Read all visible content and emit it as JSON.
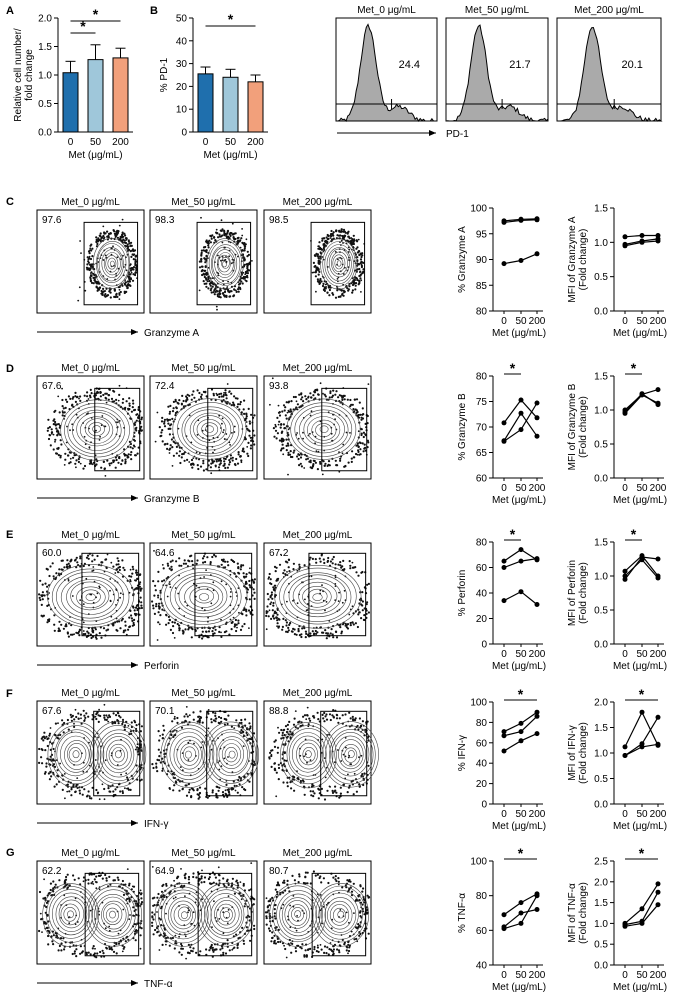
{
  "panels": {
    "A": "A",
    "B": "B",
    "C": "C",
    "D": "D",
    "E": "E",
    "F": "F",
    "G": "G"
  },
  "colors": {
    "bar0": "#1f6fad",
    "bar1": "#9fc7da",
    "bar2": "#f2a07b",
    "hist": "#aaaaaa",
    "dots": "#111111",
    "contour": "#444444"
  },
  "chart_data": [
    {
      "id": "A",
      "type": "bar",
      "title": "",
      "ylabel": "Relative cell number/ fold change",
      "ylabel_lines": [
        "Relative cell number/",
        "fold change"
      ],
      "xlabel": "Met (μg/mL)",
      "categories": [
        "0",
        "50",
        "200"
      ],
      "values": [
        1.04,
        1.27,
        1.3
      ],
      "errors": [
        0.2,
        0.26,
        0.17
      ],
      "ylim": [
        0,
        2.0
      ],
      "yticks": [
        "0.0",
        "0.5",
        "1.0",
        "1.5",
        "2.0"
      ],
      "significance": [
        {
          "from": 0,
          "to": 1,
          "label": "*"
        },
        {
          "from": 0,
          "to": 2,
          "label": "*"
        }
      ]
    },
    {
      "id": "B",
      "type": "bar",
      "title": "",
      "ylabel": "% PD-1",
      "xlabel": "Met (μg/mL)",
      "categories": [
        "0",
        "50",
        "200"
      ],
      "values": [
        25.5,
        24,
        22
      ],
      "errors": [
        3,
        3.5,
        3
      ],
      "ylim": [
        0,
        50
      ],
      "yticks": [
        "0",
        "10",
        "20",
        "30",
        "40",
        "50"
      ],
      "significance": [
        {
          "from": 0,
          "to": 2,
          "label": "*"
        }
      ]
    },
    {
      "id": "B-hist",
      "type": "histogram",
      "xlabel": "PD-1",
      "panels": [
        {
          "title": "Met_0 μg/mL",
          "value": "24.4"
        },
        {
          "title": "Met_50 μg/mL",
          "value": "21.7"
        },
        {
          "title": "Met_200 μg/mL",
          "value": "20.1"
        }
      ]
    },
    {
      "id": "C",
      "type": "line",
      "marker": "Granzyme A",
      "flow": {
        "titles": [
          "Met_0 μg/mL",
          "Met_50 μg/mL",
          "Met_200 μg/mL"
        ],
        "percents": [
          "97.6",
          "98.3",
          "98.5"
        ]
      },
      "pct": {
        "ylabel": "% Granzyme A",
        "xlabel": "Met (μg/mL)",
        "x": [
          "0",
          "50",
          "200"
        ],
        "ylim": [
          80,
          100
        ],
        "yticks": [
          "80",
          "85",
          "90",
          "95",
          "100"
        ],
        "series": [
          [
            97.2,
            97.6,
            97.7
          ],
          [
            97.5,
            97.8,
            97.9
          ],
          [
            89.2,
            89.8,
            91.1
          ]
        ],
        "significance": []
      },
      "mfi": {
        "ylabel": "MFI of Granzyme A (Fold change)",
        "ylabel_lines": [
          "MFI of Granzyme A",
          "(Fold change)"
        ],
        "xlabel": "Met (μg/mL)",
        "x": [
          "0",
          "50",
          "200"
        ],
        "ylim": [
          0.0,
          1.5
        ],
        "yticks": [
          "0.0",
          "0.5",
          "1.0",
          "1.5"
        ],
        "series": [
          [
            1.08,
            1.1,
            1.1
          ],
          [
            0.97,
            1.02,
            1.05
          ],
          [
            0.95,
            1.0,
            1.02
          ]
        ],
        "significance": []
      }
    },
    {
      "id": "D",
      "type": "line",
      "marker": "Granzyme B",
      "flow": {
        "titles": [
          "Met_0 μg/mL",
          "Met_50 μg/mL",
          "Met_200 μg/mL"
        ],
        "percents": [
          "67.6",
          "72.4",
          "93.8"
        ]
      },
      "pct": {
        "ylabel": "% Granzyme B",
        "xlabel": "Met (μg/mL)",
        "x": [
          "0",
          "50",
          "200"
        ],
        "ylim": [
          60,
          80
        ],
        "yticks": [
          "60",
          "65",
          "70",
          "75",
          "80"
        ],
        "series": [
          [
            70.8,
            75.3,
            71.8
          ],
          [
            67.3,
            72.7,
            68.2
          ],
          [
            67.2,
            69.5,
            74.7
          ]
        ],
        "significance": [
          {
            "from": 0,
            "to": 1,
            "label": "*"
          }
        ]
      },
      "mfi": {
        "ylabel": "MFI of Granzyme B (Fold change)",
        "ylabel_lines": [
          "MFI of Granzyme B",
          "(Fold change)"
        ],
        "xlabel": "Met (μg/mL)",
        "x": [
          "0",
          "50",
          "200"
        ],
        "ylim": [
          0.0,
          1.5
        ],
        "yticks": [
          "0.0",
          "0.5",
          "1.0",
          "1.5"
        ],
        "series": [
          [
            1.0,
            1.23,
            1.3
          ],
          [
            0.95,
            1.22,
            1.1
          ],
          [
            0.97,
            1.24,
            1.08
          ]
        ],
        "significance": [
          {
            "from": 0,
            "to": 1,
            "label": "*"
          }
        ]
      }
    },
    {
      "id": "E",
      "type": "line",
      "marker": "Perforin",
      "flow": {
        "titles": [
          "Met_0 μg/mL",
          "Met_50 μg/mL",
          "Met_200 μg/mL"
        ],
        "percents": [
          "60.0",
          "64.6",
          "67.2"
        ]
      },
      "pct": {
        "ylabel": "% Perforin",
        "xlabel": "Met (μg/mL)",
        "x": [
          "0",
          "50",
          "200"
        ],
        "ylim": [
          0,
          80
        ],
        "yticks": [
          "0",
          "20",
          "40",
          "60",
          "80"
        ],
        "series": [
          [
            65,
            74,
            66
          ],
          [
            60,
            65,
            67
          ],
          [
            34,
            41,
            31
          ]
        ],
        "significance": [
          {
            "from": 0,
            "to": 1,
            "label": "*"
          }
        ]
      },
      "mfi": {
        "ylabel": "MFI of Perforin (Fold change)",
        "ylabel_lines": [
          "MFI of Perforin",
          "(Fold change)"
        ],
        "xlabel": "Met (μg/mL)",
        "x": [
          "0",
          "50",
          "200"
        ],
        "ylim": [
          0.0,
          1.5
        ],
        "yticks": [
          "0.0",
          "0.5",
          "1.0",
          "1.5"
        ],
        "series": [
          [
            1.07,
            1.3,
            1.0
          ],
          [
            0.95,
            1.28,
            1.25
          ],
          [
            1.0,
            1.24,
            0.97
          ]
        ],
        "significance": [
          {
            "from": 0,
            "to": 1,
            "label": "*"
          }
        ]
      }
    },
    {
      "id": "F",
      "type": "line",
      "marker": "IFN-γ",
      "flow": {
        "titles": [
          "Met_0 μg/mL",
          "Met_50 μg/mL",
          "Met_200 μg/mL"
        ],
        "percents": [
          "67.6",
          "70.1",
          "88.8"
        ]
      },
      "pct": {
        "ylabel": "% IFN-γ",
        "xlabel": "Met (μg/mL)",
        "x": [
          "0",
          "50",
          "200"
        ],
        "ylim": [
          0,
          100
        ],
        "yticks": [
          "0",
          "20",
          "40",
          "60",
          "80",
          "100"
        ],
        "series": [
          [
            71,
            79,
            90
          ],
          [
            67,
            71,
            86
          ],
          [
            52,
            62,
            69
          ]
        ],
        "significance": [
          {
            "from": 0,
            "to": 2,
            "label": "*"
          }
        ]
      },
      "mfi": {
        "ylabel": "MFI of IFN-γ (Fold change)",
        "ylabel_lines": [
          "MFI of IFN-γ",
          "(Fold change)"
        ],
        "xlabel": "Met (μg/mL)",
        "x": [
          "0",
          "50",
          "200"
        ],
        "ylim": [
          0.0,
          2.0
        ],
        "yticks": [
          "0.0",
          "0.5",
          "1.0",
          "1.5",
          "2.0"
        ],
        "series": [
          [
            1.12,
            1.8,
            1.15
          ],
          [
            0.95,
            1.18,
            1.7
          ],
          [
            0.95,
            1.12,
            1.17
          ]
        ],
        "significance": [
          {
            "from": 0,
            "to": 2,
            "label": "*"
          }
        ]
      }
    },
    {
      "id": "G",
      "type": "line",
      "marker": "TNF-α",
      "flow": {
        "titles": [
          "Met_0 μg/mL",
          "Met_50 μg/mL",
          "Met_200 μg/mL"
        ],
        "percents": [
          "62.2",
          "64.9",
          "80.7"
        ]
      },
      "pct": {
        "ylabel": "% TNF-α",
        "xlabel": "Met (μg/mL)",
        "x": [
          "0",
          "50",
          "200"
        ],
        "ylim": [
          40,
          100
        ],
        "yticks": [
          "40",
          "60",
          "80",
          "100"
        ],
        "series": [
          [
            69,
            76,
            81
          ],
          [
            62,
            70,
            72
          ],
          [
            61,
            64,
            80
          ]
        ],
        "significance": [
          {
            "from": 0,
            "to": 2,
            "label": "*"
          }
        ]
      },
      "mfi": {
        "ylabel": "MFI of TNF-α (Fold change)",
        "ylabel_lines": [
          "MFI of TNF-α",
          "(Fold change)"
        ],
        "xlabel": "Met (μg/mL)",
        "x": [
          "0",
          "50",
          "200"
        ],
        "ylim": [
          0.0,
          2.5
        ],
        "yticks": [
          "0.0",
          "0.5",
          "1.0",
          "1.5",
          "2.0",
          "2.5"
        ],
        "series": [
          [
            1.0,
            1.35,
            1.95
          ],
          [
            0.97,
            1.05,
            1.75
          ],
          [
            0.93,
            1.0,
            1.45
          ]
        ],
        "significance": [
          {
            "from": 0,
            "to": 2,
            "label": "*"
          }
        ]
      }
    }
  ]
}
